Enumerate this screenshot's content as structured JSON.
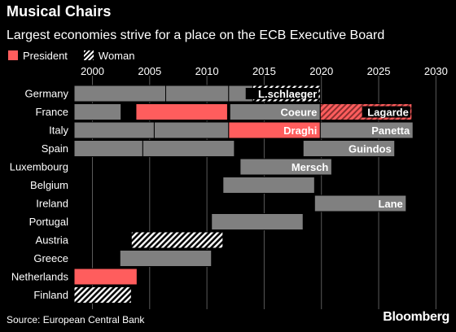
{
  "header": {
    "title": "Musical Chairs",
    "subtitle": "Largest economies strive for a place on the ECB Executive Board"
  },
  "legend": [
    {
      "label": "President",
      "kind": "president"
    },
    {
      "label": "Woman",
      "kind": "woman"
    }
  ],
  "footer": {
    "source": "Source: European Central Bank",
    "brand": "Bloomberg"
  },
  "colors": {
    "background": "#000000",
    "bar": "#808080",
    "president": "#ff5d5d",
    "hatch": "#ffffff"
  },
  "chart_data": {
    "type": "bar",
    "orientation": "horizontal-timeline",
    "title": "Musical Chairs",
    "subtitle": "Largest economies strive for a place on the ECB Executive Board",
    "xlim": [
      1998,
      2031
    ],
    "x_ticks": [
      2000,
      2005,
      2010,
      2015,
      2020,
      2025,
      2030
    ],
    "grid": true,
    "legend_position": "top-left",
    "categories": [
      "Germany",
      "France",
      "Italy",
      "Spain",
      "Luxembourg",
      "Belgium",
      "Ireland",
      "Portugal",
      "Austria",
      "Greece",
      "Netherlands",
      "Finland"
    ],
    "terms": [
      {
        "country": "Germany",
        "start": 1998.4,
        "end": 2006.4,
        "kind": "member",
        "label": ""
      },
      {
        "country": "Germany",
        "start": 2006.4,
        "end": 2011.9,
        "kind": "member",
        "label": ""
      },
      {
        "country": "Germany",
        "start": 2011.9,
        "end": 2014.0,
        "kind": "member",
        "label": ""
      },
      {
        "country": "Germany",
        "start": 2014.0,
        "end": 2019.9,
        "kind": "woman",
        "label": "L.schlaeger"
      },
      {
        "country": "France",
        "start": 1998.4,
        "end": 2002.5,
        "kind": "member",
        "label": ""
      },
      {
        "country": "France",
        "start": 2003.8,
        "end": 2011.8,
        "kind": "president",
        "label": ""
      },
      {
        "country": "France",
        "start": 2012.0,
        "end": 2019.9,
        "kind": "member",
        "label": "Coeure"
      },
      {
        "country": "France",
        "start": 2019.9,
        "end": 2027.9,
        "kind": "president-woman",
        "label": "Lagarde"
      },
      {
        "country": "Italy",
        "start": 1998.4,
        "end": 2005.4,
        "kind": "member",
        "label": ""
      },
      {
        "country": "Italy",
        "start": 2005.4,
        "end": 2011.9,
        "kind": "member",
        "label": ""
      },
      {
        "country": "Italy",
        "start": 2011.9,
        "end": 2019.9,
        "kind": "president",
        "label": "Draghi"
      },
      {
        "country": "Italy",
        "start": 2019.9,
        "end": 2028.0,
        "kind": "member",
        "label": "Panetta"
      },
      {
        "country": "Spain",
        "start": 1998.4,
        "end": 2004.4,
        "kind": "member",
        "label": ""
      },
      {
        "country": "Spain",
        "start": 2004.4,
        "end": 2012.4,
        "kind": "member",
        "label": ""
      },
      {
        "country": "Spain",
        "start": 2018.4,
        "end": 2026.4,
        "kind": "member",
        "label": "Guindos"
      },
      {
        "country": "Luxembourg",
        "start": 2012.9,
        "end": 2020.9,
        "kind": "member",
        "label": "Mersch"
      },
      {
        "country": "Belgium",
        "start": 2011.4,
        "end": 2019.4,
        "kind": "member",
        "label": ""
      },
      {
        "country": "Ireland",
        "start": 2019.4,
        "end": 2027.4,
        "kind": "member",
        "label": "Lane"
      },
      {
        "country": "Portugal",
        "start": 2010.4,
        "end": 2018.4,
        "kind": "member",
        "label": ""
      },
      {
        "country": "Austria",
        "start": 2003.4,
        "end": 2011.4,
        "kind": "woman",
        "label": ""
      },
      {
        "country": "Greece",
        "start": 2002.4,
        "end": 2010.4,
        "kind": "member",
        "label": ""
      },
      {
        "country": "Netherlands",
        "start": 1998.4,
        "end": 2003.9,
        "kind": "president",
        "label": ""
      },
      {
        "country": "Finland",
        "start": 1998.4,
        "end": 2003.4,
        "kind": "woman",
        "label": ""
      }
    ]
  }
}
